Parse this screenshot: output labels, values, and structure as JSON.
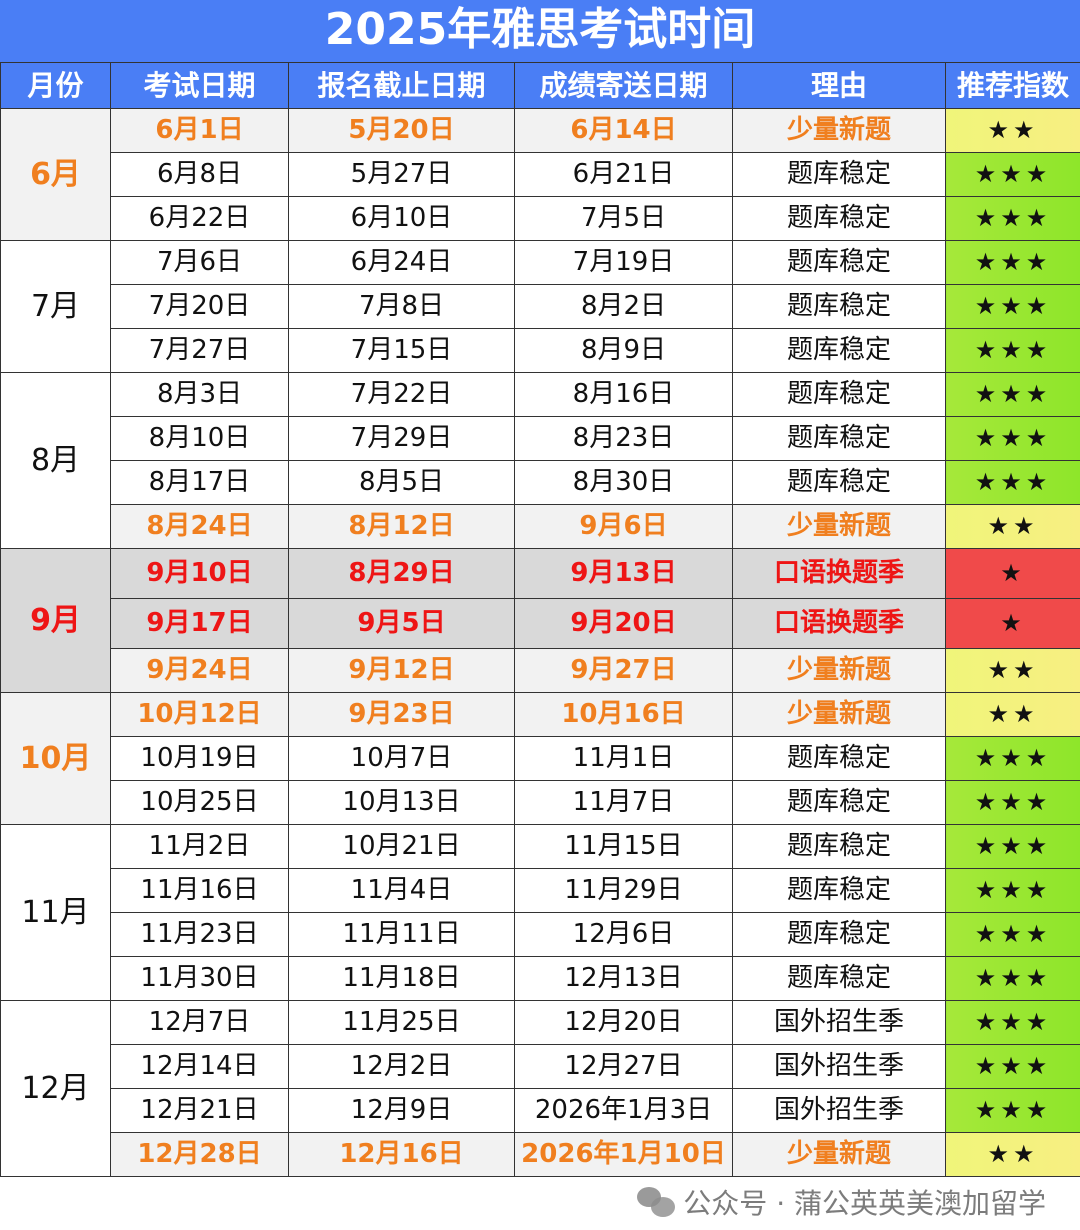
{
  "title": "2025年雅思考试时间",
  "headers": [
    "月份",
    "考试日期",
    "报名截止日期",
    "成绩寄送日期",
    "理由",
    "推荐指数"
  ],
  "colors": {
    "header_blue": "#4a7ef5",
    "orange_text": "#f07f1f",
    "red_text": "#ee1515",
    "green_stars": "#9fe832",
    "yellow_stars": "#f5f57a",
    "red_stars": "#f04a4a"
  },
  "groups": [
    {
      "month": "6月",
      "rows": [
        {
          "type": "orange",
          "exam": "6月1日",
          "deadline": "5月20日",
          "result": "6月14日",
          "reason": "少量新题",
          "stars": "★★"
        },
        {
          "type": "normal",
          "exam": "6月8日",
          "deadline": "5月27日",
          "result": "6月21日",
          "reason": "题库稳定",
          "stars": "★★★"
        },
        {
          "type": "normal",
          "exam": "6月22日",
          "deadline": "6月10日",
          "result": "7月5日",
          "reason": "题库稳定",
          "stars": "★★★"
        }
      ]
    },
    {
      "month": "7月",
      "rows": [
        {
          "type": "normal",
          "exam": "7月6日",
          "deadline": "6月24日",
          "result": "7月19日",
          "reason": "题库稳定",
          "stars": "★★★"
        },
        {
          "type": "normal",
          "exam": "7月20日",
          "deadline": "7月8日",
          "result": "8月2日",
          "reason": "题库稳定",
          "stars": "★★★"
        },
        {
          "type": "normal",
          "exam": "7月27日",
          "deadline": "7月15日",
          "result": "8月9日",
          "reason": "题库稳定",
          "stars": "★★★"
        }
      ]
    },
    {
      "month": "8月",
      "rows": [
        {
          "type": "normal",
          "exam": "8月3日",
          "deadline": "7月22日",
          "result": "8月16日",
          "reason": "题库稳定",
          "stars": "★★★"
        },
        {
          "type": "normal",
          "exam": "8月10日",
          "deadline": "7月29日",
          "result": "8月23日",
          "reason": "题库稳定",
          "stars": "★★★"
        },
        {
          "type": "normal",
          "exam": "8月17日",
          "deadline": "8月5日",
          "result": "8月30日",
          "reason": "题库稳定",
          "stars": "★★★"
        },
        {
          "type": "orange",
          "exam": "8月24日",
          "deadline": "8月12日",
          "result": "9月6日",
          "reason": "少量新题",
          "stars": "★★"
        }
      ]
    },
    {
      "month": "9月",
      "rows": [
        {
          "type": "red",
          "exam": "9月10日",
          "deadline": "8月29日",
          "result": "9月13日",
          "reason": "口语换题季",
          "stars": "★"
        },
        {
          "type": "red",
          "exam": "9月17日",
          "deadline": "9月5日",
          "result": "9月20日",
          "reason": "口语换题季",
          "stars": "★"
        },
        {
          "type": "orange",
          "exam": "9月24日",
          "deadline": "9月12日",
          "result": "9月27日",
          "reason": "少量新题",
          "stars": "★★"
        }
      ]
    },
    {
      "month": "10月",
      "rows": [
        {
          "type": "orange",
          "exam": "10月12日",
          "deadline": "9月23日",
          "result": "10月16日",
          "reason": "少量新题",
          "stars": "★★"
        },
        {
          "type": "normal",
          "exam": "10月19日",
          "deadline": "10月7日",
          "result": "11月1日",
          "reason": "题库稳定",
          "stars": "★★★"
        },
        {
          "type": "normal",
          "exam": "10月25日",
          "deadline": "10月13日",
          "result": "11月7日",
          "reason": "题库稳定",
          "stars": "★★★"
        }
      ]
    },
    {
      "month": "11月",
      "rows": [
        {
          "type": "normal",
          "exam": "11月2日",
          "deadline": "10月21日",
          "result": "11月15日",
          "reason": "题库稳定",
          "stars": "★★★"
        },
        {
          "type": "normal",
          "exam": "11月16日",
          "deadline": "11月4日",
          "result": "11月29日",
          "reason": "题库稳定",
          "stars": "★★★"
        },
        {
          "type": "normal",
          "exam": "11月23日",
          "deadline": "11月11日",
          "result": "12月6日",
          "reason": "题库稳定",
          "stars": "★★★"
        },
        {
          "type": "normal",
          "exam": "11月30日",
          "deadline": "11月18日",
          "result": "12月13日",
          "reason": "题库稳定",
          "stars": "★★★"
        }
      ]
    },
    {
      "month": "12月",
      "rows": [
        {
          "type": "normal",
          "exam": "12月7日",
          "deadline": "11月25日",
          "result": "12月20日",
          "reason": "国外招生季",
          "stars": "★★★"
        },
        {
          "type": "normal",
          "exam": "12月14日",
          "deadline": "12月2日",
          "result": "12月27日",
          "reason": "国外招生季",
          "stars": "★★★"
        },
        {
          "type": "normal",
          "exam": "12月21日",
          "deadline": "12月9日",
          "result": "2026年1月3日",
          "reason": "国外招生季",
          "stars": "★★★"
        },
        {
          "type": "orange",
          "exam": "12月28日",
          "deadline": "12月16日",
          "result": "2026年1月10日",
          "reason": "少量新题",
          "stars": "★★"
        }
      ]
    }
  ],
  "watermark": "公众号 · 蒲公英英美澳加留学"
}
